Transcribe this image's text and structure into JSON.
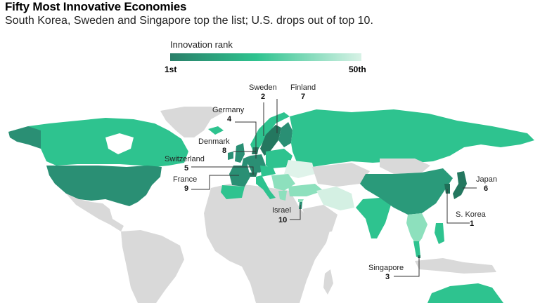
{
  "header": {
    "title": "Fifty Most Innovative Economies",
    "subtitle": "South Korea, Sweden and Singapore top the list; U.S. drops out of top 10."
  },
  "legend": {
    "title": "Innovation rank",
    "min_label": "1st",
    "max_label": "50th",
    "colors": {
      "rank_1": "#2a7f69",
      "mid": "#2ec38f",
      "rank_50": "#d8f2e6",
      "not_ranked": "#d9d9d9"
    }
  },
  "callouts": [
    {
      "country": "Sweden",
      "rank": "2"
    },
    {
      "country": "Finland",
      "rank": "7"
    },
    {
      "country": "Germany",
      "rank": "4"
    },
    {
      "country": "Denmark",
      "rank": "8"
    },
    {
      "country": "Switzerland",
      "rank": "5"
    },
    {
      "country": "France",
      "rank": "9"
    },
    {
      "country": "Israel",
      "rank": "10"
    },
    {
      "country": "Japan",
      "rank": "6"
    },
    {
      "country": "S. Korea",
      "rank": "1"
    },
    {
      "country": "Singapore",
      "rank": "3"
    }
  ]
}
